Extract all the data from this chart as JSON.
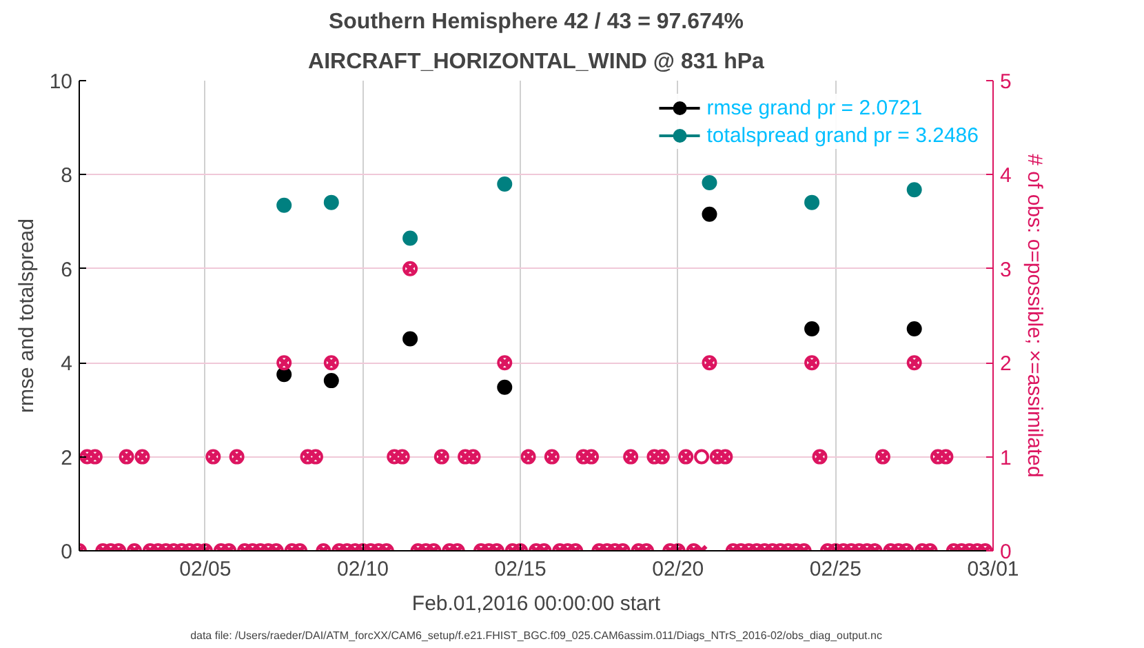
{
  "chart_data": {
    "type": "line",
    "title": "Southern Hemisphere 42 / 43 = 97.674%",
    "subtitle": "AIRCRAFT_HORIZONTAL_WIND @ 831 hPa",
    "xlabel": "Feb.01,2016 00:00:00 start",
    "ylabel": "rmse and totalspread",
    "y2label": "# of obs: o=possible; ×=assimilated",
    "annotations": [
      "data file: /Users/raeder/DAI/ATM_forcXX/CAM6_setup/f.e21.FHIST_BGC.f09_025.CAM6assim.011/Diags_NTrS_2016-02/obs_diag_output.nc"
    ],
    "x": [
      "2016-02-01T00:00",
      "2016-02-01T06:00",
      "2016-02-01T12:00",
      "2016-02-01T18:00",
      "2016-02-02T00:00",
      "2016-02-02T06:00",
      "2016-02-02T12:00",
      "2016-02-02T18:00",
      "2016-02-03T00:00",
      "2016-02-03T06:00",
      "2016-02-03T12:00",
      "2016-02-03T18:00",
      "2016-02-04T00:00",
      "2016-02-04T06:00",
      "2016-02-04T12:00",
      "2016-02-04T18:00",
      "2016-02-05T00:00",
      "2016-02-05T06:00",
      "2016-02-05T12:00",
      "2016-02-05T18:00",
      "2016-02-06T00:00",
      "2016-02-06T06:00",
      "2016-02-06T12:00",
      "2016-02-06T18:00",
      "2016-02-07T00:00",
      "2016-02-07T06:00",
      "2016-02-07T12:00",
      "2016-02-07T18:00",
      "2016-02-08T00:00",
      "2016-02-08T06:00",
      "2016-02-08T12:00",
      "2016-02-08T18:00",
      "2016-02-09T00:00",
      "2016-02-09T06:00",
      "2016-02-09T12:00",
      "2016-02-09T18:00",
      "2016-02-10T00:00",
      "2016-02-10T06:00",
      "2016-02-10T12:00",
      "2016-02-10T18:00",
      "2016-02-11T00:00",
      "2016-02-11T06:00",
      "2016-02-11T12:00",
      "2016-02-11T18:00",
      "2016-02-12T00:00",
      "2016-02-12T06:00",
      "2016-02-12T12:00",
      "2016-02-12T18:00",
      "2016-02-13T00:00",
      "2016-02-13T06:00",
      "2016-02-13T12:00",
      "2016-02-13T18:00",
      "2016-02-14T00:00",
      "2016-02-14T06:00",
      "2016-02-14T12:00",
      "2016-02-14T18:00",
      "2016-02-15T00:00",
      "2016-02-15T06:00",
      "2016-02-15T12:00",
      "2016-02-15T18:00",
      "2016-02-16T00:00",
      "2016-02-16T06:00",
      "2016-02-16T12:00",
      "2016-02-16T18:00",
      "2016-02-17T00:00",
      "2016-02-17T06:00",
      "2016-02-17T12:00",
      "2016-02-17T18:00",
      "2016-02-18T00:00",
      "2016-02-18T06:00",
      "2016-02-18T12:00",
      "2016-02-18T18:00",
      "2016-02-19T00:00",
      "2016-02-19T06:00",
      "2016-02-19T12:00",
      "2016-02-19T18:00",
      "2016-02-20T00:00",
      "2016-02-20T06:00",
      "2016-02-20T12:00",
      "2016-02-20T18:00",
      "2016-02-21T00:00",
      "2016-02-21T06:00",
      "2016-02-21T12:00",
      "2016-02-21T18:00",
      "2016-02-22T00:00",
      "2016-02-22T06:00",
      "2016-02-22T12:00",
      "2016-02-22T18:00",
      "2016-02-23T00:00",
      "2016-02-23T06:00",
      "2016-02-23T12:00",
      "2016-02-23T18:00",
      "2016-02-24T00:00",
      "2016-02-24T06:00",
      "2016-02-24T12:00",
      "2016-02-24T18:00",
      "2016-02-25T00:00",
      "2016-02-25T06:00",
      "2016-02-25T12:00",
      "2016-02-25T18:00",
      "2016-02-26T00:00",
      "2016-02-26T06:00",
      "2016-02-26T12:00",
      "2016-02-26T18:00",
      "2016-02-27T00:00",
      "2016-02-27T06:00",
      "2016-02-27T12:00",
      "2016-02-27T18:00",
      "2016-02-28T00:00",
      "2016-02-28T06:00",
      "2016-02-28T12:00",
      "2016-02-28T18:00",
      "2016-02-29T00:00",
      "2016-02-29T06:00",
      "2016-02-29T12:00",
      "2016-02-29T18:00"
    ],
    "series": [
      {
        "name": "rmse grand pr = 2.0721",
        "color": "#000000",
        "marker": "circle",
        "values": [
          null,
          null,
          null,
          null,
          null,
          null,
          null,
          null,
          null,
          null,
          null,
          null,
          null,
          null,
          null,
          null,
          null,
          null,
          null,
          null,
          null,
          null,
          null,
          null,
          null,
          null,
          3.75,
          null,
          null,
          null,
          null,
          null,
          3.62,
          null,
          null,
          null,
          null,
          null,
          null,
          null,
          null,
          null,
          4.51,
          null,
          null,
          null,
          null,
          null,
          null,
          null,
          null,
          null,
          null,
          null,
          3.48,
          null,
          null,
          null,
          null,
          null,
          null,
          null,
          null,
          null,
          null,
          null,
          null,
          null,
          null,
          null,
          null,
          null,
          null,
          null,
          null,
          null,
          null,
          null,
          null,
          null,
          7.16,
          null,
          null,
          null,
          null,
          null,
          null,
          null,
          null,
          null,
          null,
          null,
          null,
          4.72,
          null,
          null,
          null,
          null,
          null,
          null,
          null,
          null,
          null,
          null,
          null,
          null,
          4.72,
          null,
          null,
          null,
          null,
          null,
          null,
          null,
          null,
          null
        ]
      },
      {
        "name": "totalspread grand pr = 3.2486",
        "color": "#008080",
        "marker": "circle",
        "values": [
          null,
          null,
          null,
          null,
          null,
          null,
          null,
          null,
          null,
          null,
          null,
          null,
          null,
          null,
          null,
          null,
          null,
          null,
          null,
          null,
          null,
          null,
          null,
          null,
          null,
          null,
          7.35,
          null,
          null,
          null,
          null,
          null,
          7.41,
          null,
          null,
          null,
          null,
          null,
          null,
          null,
          null,
          null,
          6.65,
          null,
          null,
          null,
          null,
          null,
          null,
          null,
          null,
          null,
          null,
          null,
          7.8,
          null,
          null,
          null,
          null,
          null,
          null,
          null,
          null,
          null,
          null,
          null,
          null,
          null,
          null,
          null,
          null,
          null,
          null,
          null,
          null,
          null,
          null,
          null,
          null,
          null,
          7.83,
          null,
          null,
          null,
          null,
          null,
          null,
          null,
          null,
          null,
          null,
          null,
          null,
          7.41,
          null,
          null,
          null,
          null,
          null,
          null,
          null,
          null,
          null,
          null,
          null,
          null,
          7.68,
          null,
          null,
          null,
          null,
          null,
          null,
          null,
          null,
          null
        ]
      },
      {
        "type": "scatter",
        "axis": "y2",
        "color": "#dc1560",
        "marker": "circle",
        "values": [
          0,
          1,
          1,
          0,
          0,
          0,
          1,
          0,
          1,
          0,
          0,
          0,
          0,
          0,
          0,
          0,
          0,
          1,
          0,
          0,
          1,
          0,
          0,
          0,
          0,
          0,
          2,
          0,
          0,
          1,
          1,
          0,
          2,
          0,
          0,
          0,
          0,
          0,
          0,
          0,
          1,
          1,
          3,
          0,
          0,
          0,
          1,
          0,
          0,
          1,
          1,
          0,
          0,
          0,
          2,
          0,
          0,
          1,
          0,
          0,
          1,
          0,
          0,
          0,
          1,
          1,
          0,
          0,
          0,
          0,
          1,
          0,
          0,
          1,
          1,
          0,
          0,
          1,
          0,
          1,
          2,
          1,
          1,
          0,
          0,
          0,
          0,
          0,
          0,
          0,
          0,
          0,
          0,
          2,
          1,
          0,
          0,
          0,
          0,
          0,
          0,
          0,
          1,
          0,
          0,
          0,
          2,
          0,
          0,
          1,
          1,
          0,
          0,
          0,
          0,
          0
        ]
      },
      {
        "type": "scatter",
        "axis": "y2",
        "color": "#dc1560",
        "marker": "cross",
        "values": [
          0,
          1,
          1,
          0,
          0,
          0,
          1,
          0,
          1,
          0,
          0,
          0,
          0,
          0,
          0,
          0,
          0,
          1,
          0,
          0,
          1,
          0,
          0,
          0,
          0,
          0,
          2,
          0,
          0,
          1,
          1,
          0,
          2,
          0,
          0,
          0,
          0,
          0,
          0,
          0,
          1,
          1,
          3,
          0,
          0,
          0,
          1,
          0,
          0,
          1,
          1,
          0,
          0,
          0,
          2,
          0,
          0,
          1,
          0,
          0,
          1,
          0,
          0,
          0,
          1,
          1,
          0,
          0,
          0,
          0,
          1,
          0,
          0,
          1,
          1,
          0,
          0,
          1,
          0,
          0,
          2,
          1,
          1,
          0,
          0,
          0,
          0,
          0,
          0,
          0,
          0,
          0,
          0,
          2,
          1,
          0,
          0,
          0,
          0,
          0,
          0,
          0,
          1,
          0,
          0,
          0,
          2,
          0,
          0,
          1,
          1,
          0,
          0,
          0,
          0,
          0
        ]
      }
    ],
    "xlim": [
      "2016-02-01T00:00",
      "2016-03-01T00:00"
    ],
    "xticks": [
      {
        "value": "2016-02-05",
        "label": "02/05"
      },
      {
        "value": "2016-02-10",
        "label": "02/10"
      },
      {
        "value": "2016-02-15",
        "label": "02/15"
      },
      {
        "value": "2016-02-20",
        "label": "02/20"
      },
      {
        "value": "2016-02-25",
        "label": "02/25"
      },
      {
        "value": "2016-03-01",
        "label": "03/01"
      }
    ],
    "ylim": [
      0,
      10
    ],
    "yticks": [
      0,
      2,
      4,
      6,
      8,
      10
    ],
    "y2lim": [
      0,
      5
    ],
    "y2ticks": [
      0,
      1,
      2,
      3,
      4,
      5
    ],
    "grid": true,
    "legend": "top right",
    "line_style": "solid"
  }
}
